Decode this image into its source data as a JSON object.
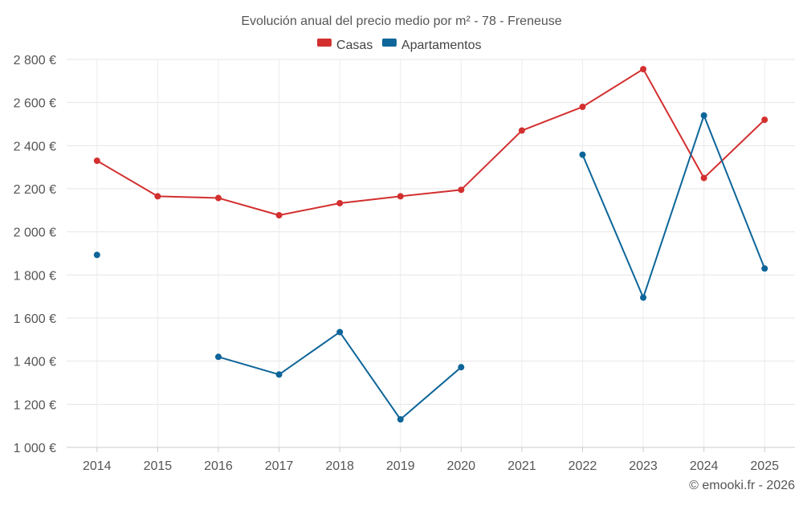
{
  "chart_data": {
    "type": "line",
    "title": "Evolución anual del precio medio por m² - 78 - Freneuse",
    "categories": [
      "2014",
      "2015",
      "2016",
      "2017",
      "2018",
      "2019",
      "2020",
      "2021",
      "2022",
      "2023",
      "2024",
      "2025"
    ],
    "ylim": [
      1000,
      2800
    ],
    "yticks": [
      1000,
      1200,
      1400,
      1600,
      1800,
      2000,
      2200,
      2400,
      2600,
      2800
    ],
    "ytick_labels": [
      "1 000 €",
      "1 200 €",
      "1 400 €",
      "1 600 €",
      "1 800 €",
      "2 000 €",
      "2 200 €",
      "2 400 €",
      "2 600 €",
      "2 800 €"
    ],
    "legend_position": "top-center",
    "grid": true,
    "series": [
      {
        "name": "Casas",
        "color": "#d32f2f",
        "values": [
          2330,
          2165,
          2157,
          2077,
          2133,
          2165,
          2195,
          2470,
          2580,
          2755,
          2250,
          2520
        ]
      },
      {
        "name": "Apartamentos",
        "color": "#0d6599",
        "values": [
          1893,
          null,
          1420,
          1338,
          1535,
          1130,
          1372,
          null,
          2358,
          1695,
          2540,
          1830
        ]
      }
    ]
  },
  "credit": "© emooki.fr - 2026"
}
